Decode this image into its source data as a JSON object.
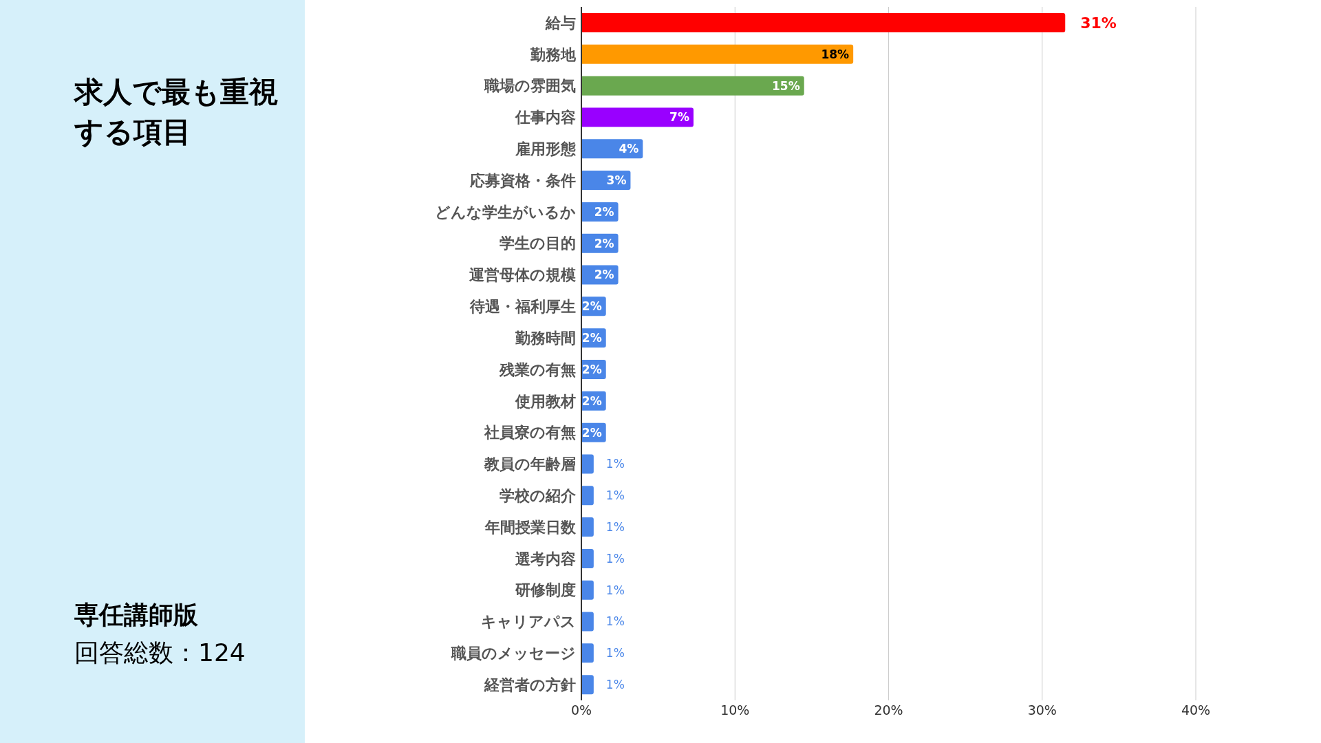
{
  "chart_data": {
    "type": "bar",
    "orientation": "horizontal",
    "title": "求人で最も重視する項目",
    "annotations": [
      "専任講師版",
      "回答総数：124"
    ],
    "categories": [
      "給与",
      "勤務地",
      "職場の雰囲気",
      "仕事内容",
      "雇用形態",
      "応募資格・条件",
      "どんな学生がいるか",
      "学生の目的",
      "運営母体の規模",
      "待遇・福利厚生",
      "勤務時間",
      "残業の有無",
      "使用教材",
      "社員寮の有無",
      "教員の年齢層",
      "学校の紹介",
      "年間授業日数",
      "選考内容",
      "研修制度",
      "キャリアパス",
      "職員のメッセージ",
      "経営者の方針"
    ],
    "values": [
      31.5,
      17.7,
      14.5,
      7.3,
      4.0,
      3.2,
      2.4,
      2.4,
      2.4,
      1.6,
      1.6,
      1.6,
      1.6,
      1.6,
      0.8,
      0.8,
      0.8,
      0.8,
      0.8,
      0.8,
      0.8,
      0.8
    ],
    "value_labels": [
      "31%",
      "18%",
      "15%",
      "7%",
      "4%",
      "3%",
      "2%",
      "2%",
      "2%",
      "2%",
      "2%",
      "2%",
      "2%",
      "2%",
      "1%",
      "1%",
      "1%",
      "1%",
      "1%",
      "1%",
      "1%",
      "1%"
    ],
    "colors": [
      "#ff0000",
      "#ff9900",
      "#6aa84f",
      "#9900ff",
      "#4a86e8",
      "#4a86e8",
      "#4a86e8",
      "#4a86e8",
      "#4a86e8",
      "#4a86e8",
      "#4a86e8",
      "#4a86e8",
      "#4a86e8",
      "#4a86e8",
      "#4a86e8",
      "#4a86e8",
      "#4a86e8",
      "#4a86e8",
      "#4a86e8",
      "#4a86e8",
      "#4a86e8",
      "#4a86e8"
    ],
    "xlim": [
      0,
      40
    ],
    "xticks": [
      {
        "value": 0,
        "label": "0%"
      },
      {
        "value": 10,
        "label": "10%"
      },
      {
        "value": 20,
        "label": "20%"
      },
      {
        "value": 30,
        "label": "30%"
      },
      {
        "value": 40,
        "label": "40%"
      }
    ],
    "grid": "x",
    "legend": false
  }
}
